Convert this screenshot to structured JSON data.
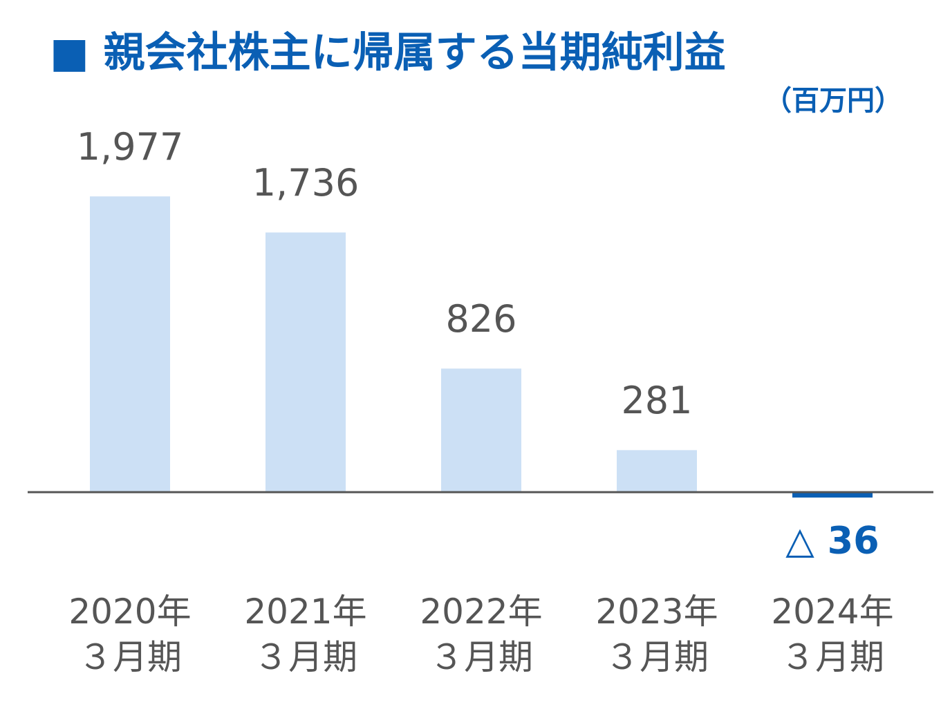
{
  "chart_data": {
    "type": "bar",
    "title": "■ 親会社株主に帰属する当期純利益",
    "subtitle": "（百万円）",
    "categories": [
      "2020年\n３月期",
      "2021年\n３月期",
      "2022年\n３月期",
      "2023年\n３月期",
      "2024年\n３月期"
    ],
    "values": [
      1977,
      1736,
      826,
      281,
      -36
    ],
    "value_labels": [
      "1,977",
      "1,736",
      "826",
      "281",
      "△ 36"
    ],
    "color": "#cce0f5",
    "negative_color": "#0a5fb4",
    "ylim": [
      -600,
      2500
    ]
  }
}
